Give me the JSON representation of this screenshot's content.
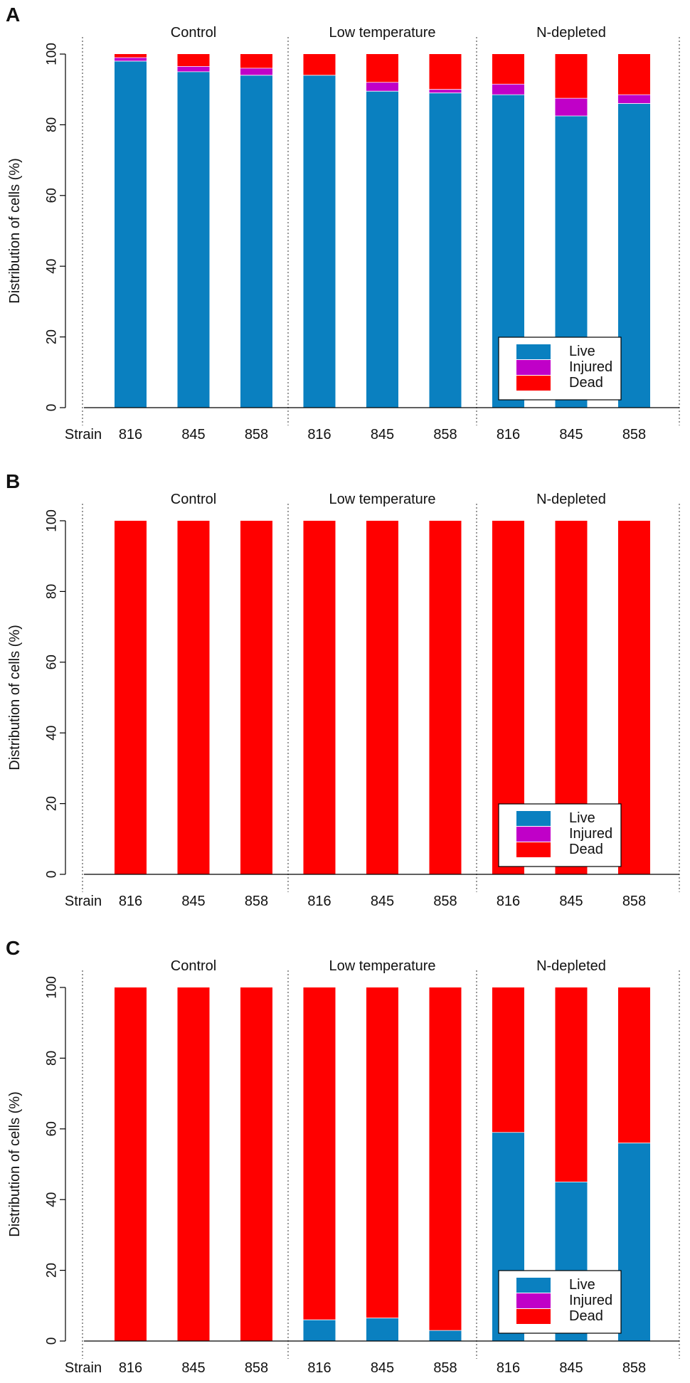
{
  "chart_data": [
    {
      "panel": "A",
      "type": "bar",
      "stacked": true,
      "groups": [
        "Control",
        "Low temperature",
        "N-depleted"
      ],
      "categories": [
        "816",
        "845",
        "858",
        "816",
        "845",
        "858",
        "816",
        "845",
        "858"
      ],
      "category_axis_label": "Strain",
      "ylabel": "Distribution of cells (%)",
      "ylim": [
        0,
        100
      ],
      "yticks": [
        0,
        20,
        40,
        60,
        80,
        100
      ],
      "series": [
        {
          "name": "Live",
          "color": "#0a80c0",
          "values": [
            98,
            95,
            94,
            94,
            89.5,
            89,
            88.5,
            82.5,
            86
          ]
        },
        {
          "name": "Injured",
          "color": "#c000c8",
          "values": [
            1,
            1.5,
            2,
            0,
            2.5,
            1,
            3,
            5,
            2.5
          ]
        },
        {
          "name": "Dead",
          "color": "#ff0000",
          "values": [
            1,
            3.5,
            4,
            6,
            8,
            10,
            8.5,
            12.5,
            11.5
          ]
        }
      ],
      "legend": [
        "Live",
        "Injured",
        "Dead"
      ],
      "legend_position": "bottom-right"
    },
    {
      "panel": "B",
      "type": "bar",
      "stacked": true,
      "groups": [
        "Control",
        "Low temperature",
        "N-depleted"
      ],
      "categories": [
        "816",
        "845",
        "858",
        "816",
        "845",
        "858",
        "816",
        "845",
        "858"
      ],
      "category_axis_label": "Strain",
      "ylabel": "Distribution of cells (%)",
      "ylim": [
        0,
        100
      ],
      "yticks": [
        0,
        20,
        40,
        60,
        80,
        100
      ],
      "series": [
        {
          "name": "Live",
          "color": "#0a80c0",
          "values": [
            0,
            0,
            0,
            0,
            0,
            0,
            0,
            0,
            0
          ]
        },
        {
          "name": "Injured",
          "color": "#c000c8",
          "values": [
            0,
            0,
            0,
            0,
            0,
            0,
            0,
            0,
            0
          ]
        },
        {
          "name": "Dead",
          "color": "#ff0000",
          "values": [
            100,
            100,
            100,
            100,
            100,
            100,
            100,
            100,
            100
          ]
        }
      ],
      "legend": [
        "Live",
        "Injured",
        "Dead"
      ],
      "legend_position": "bottom-right"
    },
    {
      "panel": "C",
      "type": "bar",
      "stacked": true,
      "groups": [
        "Control",
        "Low temperature",
        "N-depleted"
      ],
      "categories": [
        "816",
        "845",
        "858",
        "816",
        "845",
        "858",
        "816",
        "845",
        "858"
      ],
      "category_axis_label": "Strain",
      "ylabel": "Distribution of cells (%)",
      "ylim": [
        0,
        100
      ],
      "yticks": [
        0,
        20,
        40,
        60,
        80,
        100
      ],
      "series": [
        {
          "name": "Live",
          "color": "#0a80c0",
          "values": [
            0,
            0,
            0,
            6,
            6.5,
            3,
            59,
            45,
            56
          ]
        },
        {
          "name": "Injured",
          "color": "#c000c8",
          "values": [
            0,
            0,
            0,
            0,
            0,
            0,
            0,
            0,
            0
          ]
        },
        {
          "name": "Dead",
          "color": "#ff0000",
          "values": [
            100,
            100,
            100,
            94,
            93.5,
            97,
            41,
            55,
            44
          ]
        }
      ],
      "legend": [
        "Live",
        "Injured",
        "Dead"
      ],
      "legend_position": "bottom-right"
    }
  ]
}
